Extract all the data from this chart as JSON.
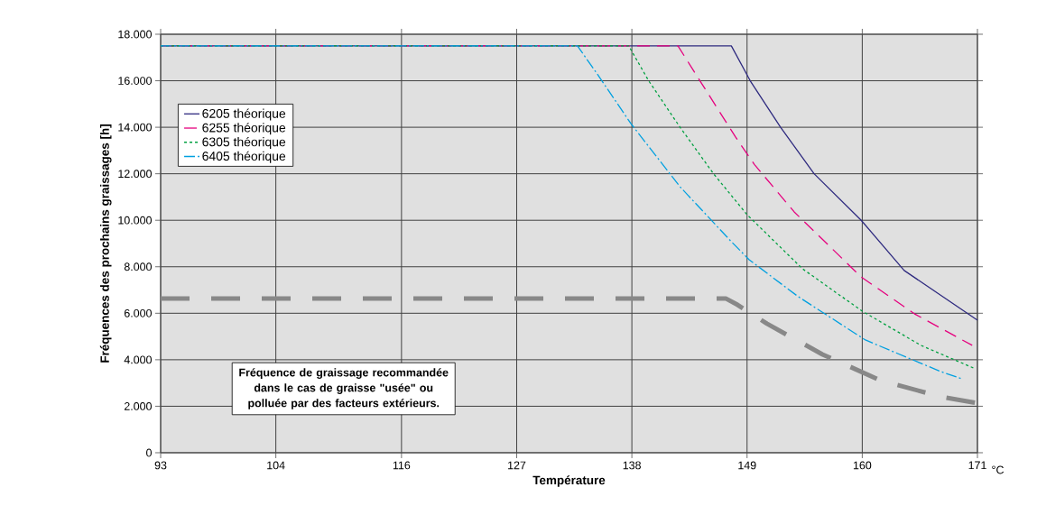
{
  "chart_data": {
    "type": "line",
    "xlabel": "Température",
    "ylabel": "Fréquences des prochains graissages [h]",
    "xlim": [
      93,
      171
    ],
    "xticks": [
      93,
      104,
      116,
      127,
      138,
      149,
      160,
      171
    ],
    "ylim": [
      0,
      18000
    ],
    "yticks": [
      0,
      {
        "value": 2000,
        "label": "2.000"
      },
      {
        "value": 4000,
        "label": "4.000"
      },
      {
        "value": 6000,
        "label": "6.000"
      },
      {
        "value": 8000,
        "label": "8.000"
      },
      {
        "value": 10000,
        "label": "10.000"
      },
      {
        "value": 12000,
        "label": "12.000"
      },
      {
        "value": 14000,
        "label": "14.000"
      },
      {
        "value": 16000,
        "label": "16.000"
      },
      {
        "value": 18000,
        "label": "18.000"
      }
    ],
    "grid": true,
    "legend": "top left",
    "marker": "none",
    "annotations": [
      "Fréquence de graissage recommandée dans le cas de graisse \"usée\" ou polluée par des facteurs extérieurs.",
      "°C"
    ],
    "series": [
      {
        "name": "6205 théorique",
        "color": "#2e2a7f",
        "line_style": "solid",
        "x": [
          93,
          147.5,
          149.3,
          152.2,
          155.4,
          159.9,
          164,
          171
        ],
        "values": [
          17500,
          17500,
          16000,
          14000,
          12000,
          10000,
          7840,
          5700
        ]
      },
      {
        "name": "6255 théorique",
        "color": "#e5007e",
        "line_style": "dashed",
        "x": [
          93,
          142.4,
          144.5,
          147.9,
          149.7,
          153.5,
          159.9,
          165,
          170.5
        ],
        "values": [
          17500,
          17500,
          16000,
          13580,
          12400,
          10360,
          7560,
          5970,
          4620
        ]
      },
      {
        "name": "6305 théorique",
        "color": "#00a040",
        "line_style": "dotted",
        "x": [
          93,
          137.7,
          139.6,
          142.6,
          145.8,
          149,
          154.3,
          160,
          165.6,
          170.6
        ],
        "values": [
          17500,
          17500,
          16000,
          14000,
          12000,
          10240,
          7910,
          6090,
          4620,
          3650
        ]
      },
      {
        "name": "6405 théorique",
        "color": "#00a0e0",
        "line_style": "dashdot",
        "x": [
          93,
          132.8,
          134.7,
          137.9,
          142.6,
          147.5,
          149.2,
          153.9,
          160.3,
          167.5,
          169.5
        ],
        "values": [
          17500,
          17500,
          16290,
          14160,
          11440,
          9080,
          8300,
          6710,
          4850,
          3490,
          3180
        ]
      },
      {
        "color": "#888888",
        "line_style": "dashed",
        "x": [
          93,
          147,
          148.1,
          150.9,
          156.2,
          161.8,
          167.6,
          171
        ],
        "values": [
          6630,
          6630,
          6360,
          5550,
          4230,
          3100,
          2400,
          2130
        ]
      }
    ]
  }
}
